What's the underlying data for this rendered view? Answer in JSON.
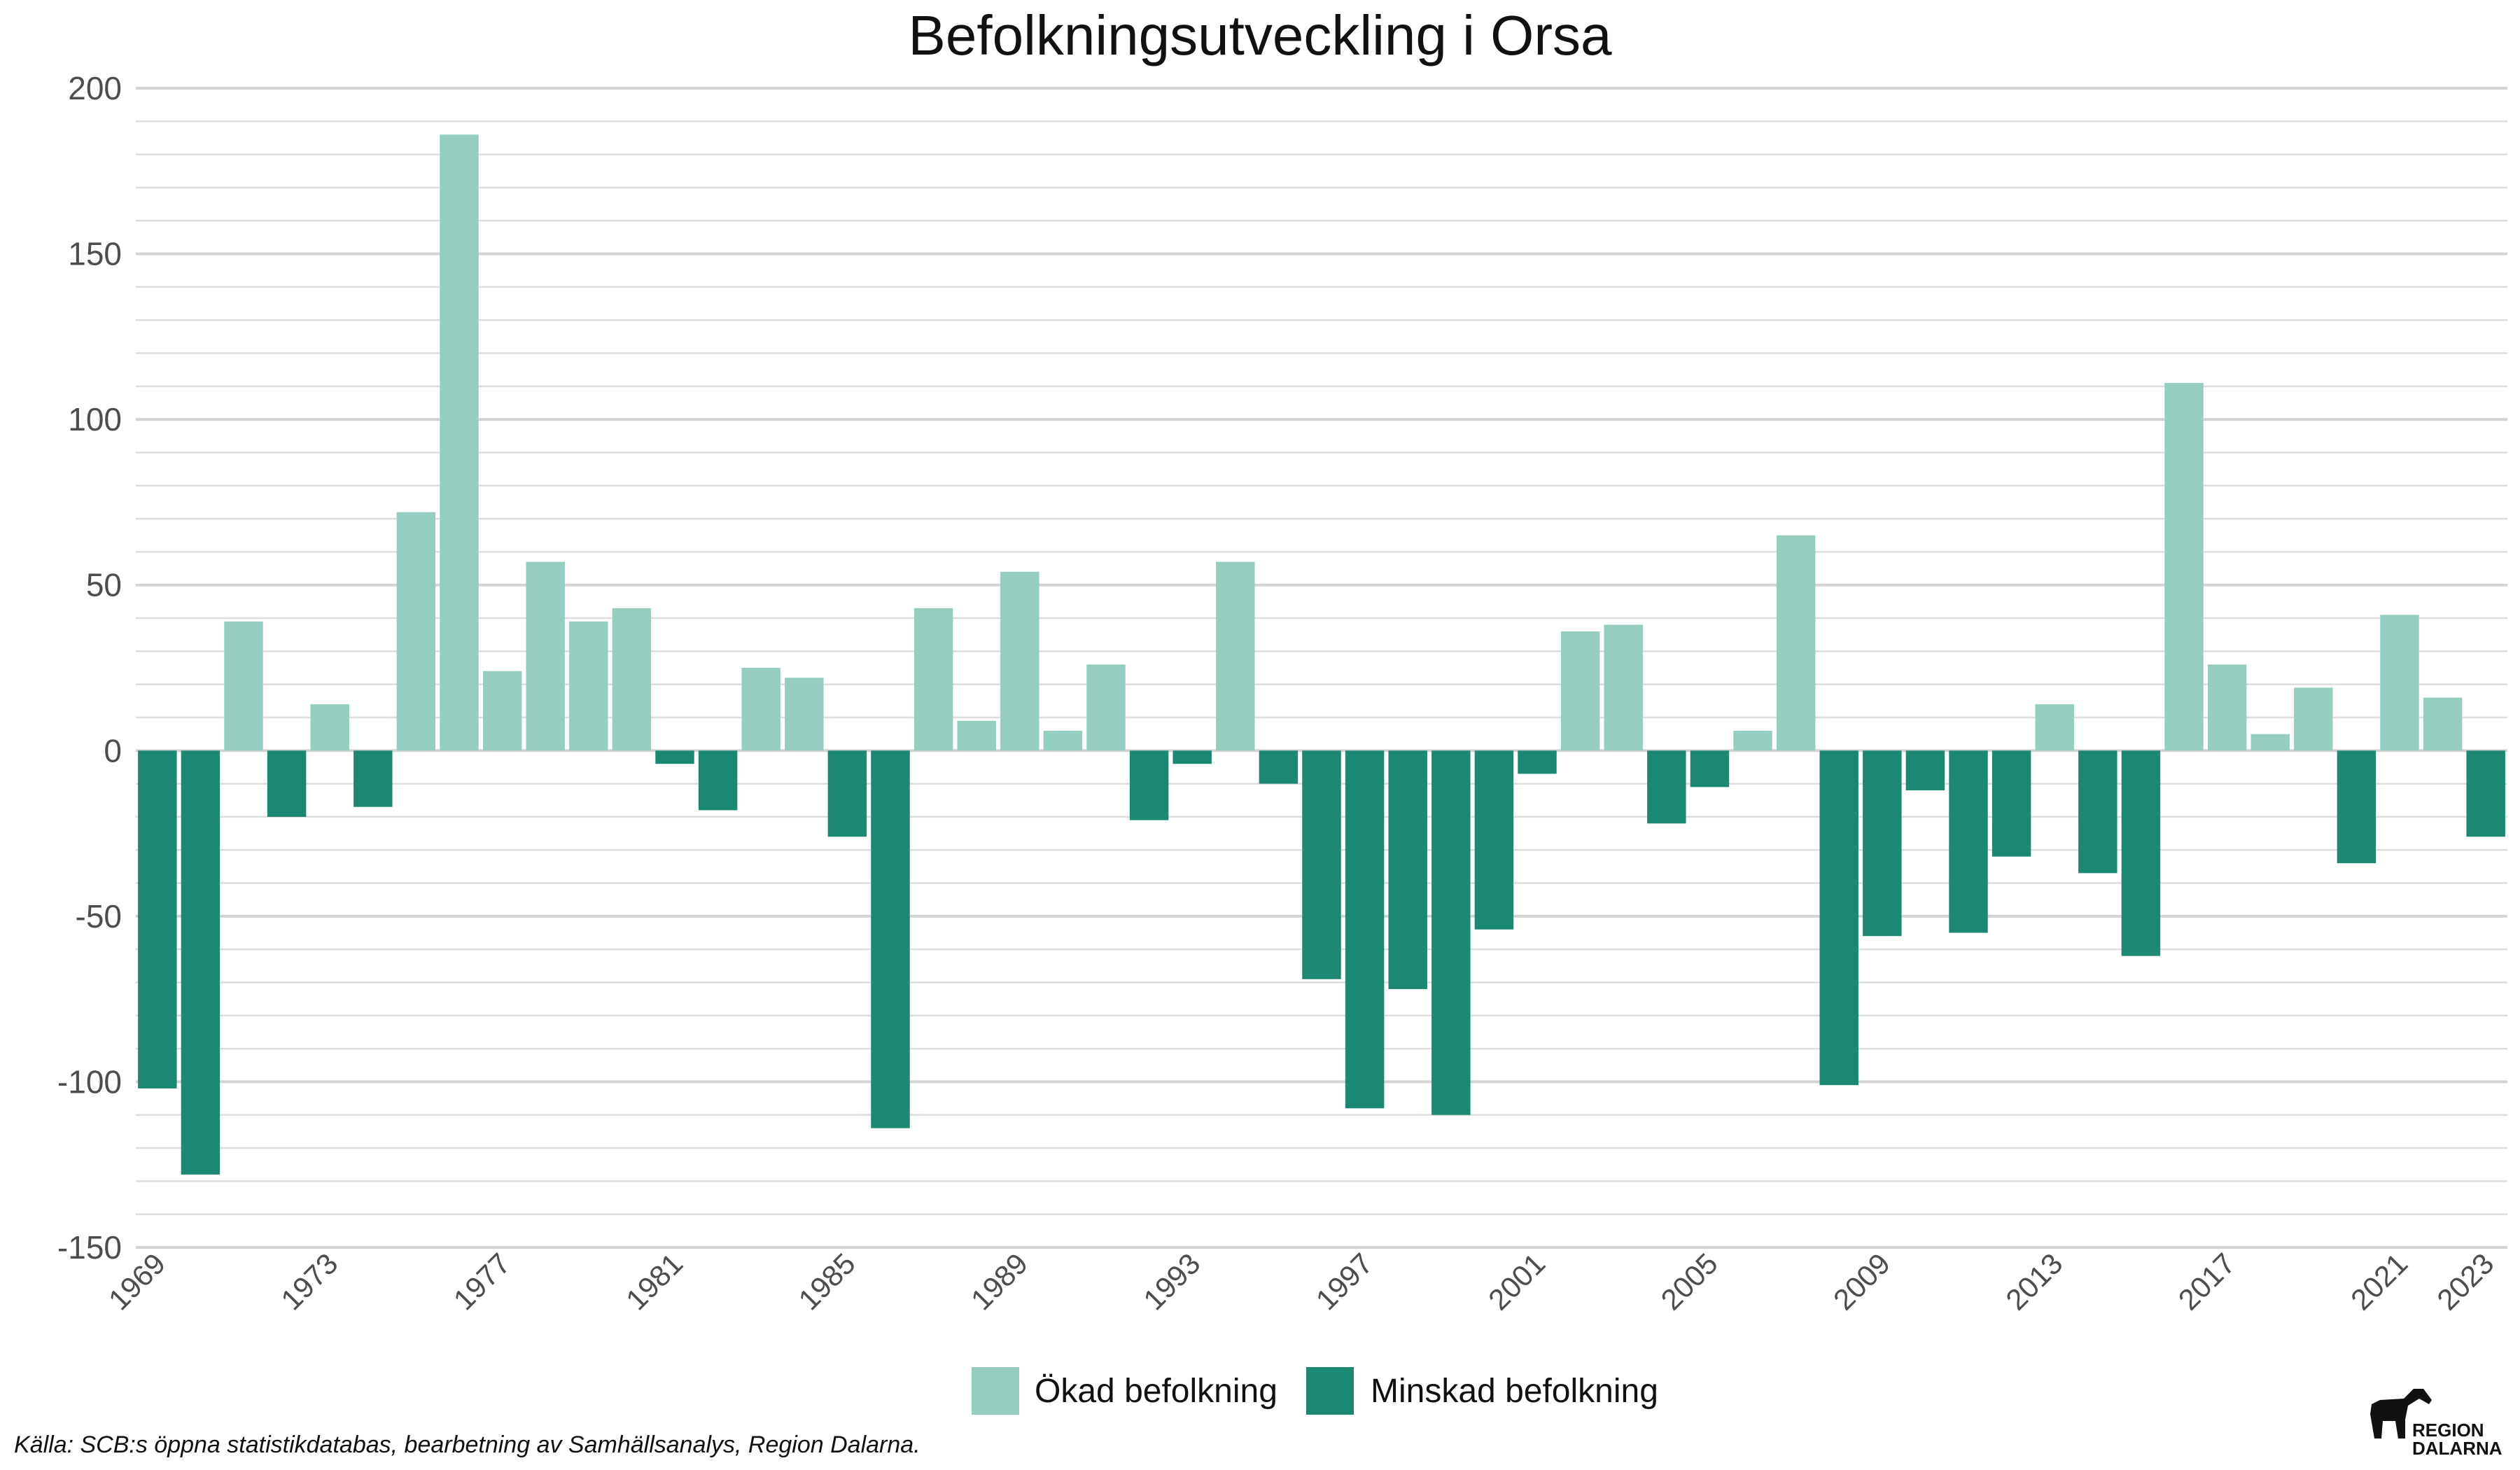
{
  "chart_data": {
    "type": "bar",
    "title": "Befolkningsutveckling i Orsa",
    "xlabel": "",
    "ylabel": "",
    "ylim": [
      -150,
      200
    ],
    "yticks": [
      200,
      150,
      100,
      50,
      0,
      -50,
      -100,
      -150
    ],
    "grid": true,
    "legend_position": "bottom",
    "x_tick_labels": [
      "1969",
      "1973",
      "1977",
      "1981",
      "1985",
      "1989",
      "1993",
      "1997",
      "2001",
      "2005",
      "2009",
      "2013",
      "2017",
      "2021",
      "2023"
    ],
    "categories": [
      1969,
      1970,
      1971,
      1972,
      1973,
      1974,
      1975,
      1976,
      1977,
      1978,
      1979,
      1980,
      1981,
      1982,
      1983,
      1984,
      1985,
      1986,
      1987,
      1988,
      1989,
      1990,
      1991,
      1992,
      1993,
      1994,
      1995,
      1996,
      1997,
      1998,
      1999,
      2000,
      2001,
      2002,
      2003,
      2004,
      2005,
      2006,
      2007,
      2008,
      2009,
      2010,
      2011,
      2012,
      2013,
      2014,
      2015,
      2016,
      2017,
      2018,
      2019,
      2020,
      2021,
      2022,
      2023
    ],
    "values": [
      -102,
      -128,
      39,
      -20,
      14,
      -17,
      72,
      186,
      24,
      57,
      39,
      43,
      -4,
      -18,
      25,
      22,
      -26,
      -114,
      43,
      9,
      54,
      6,
      26,
      -21,
      -4,
      57,
      -10,
      -69,
      -108,
      -72,
      -110,
      -54,
      -7,
      36,
      38,
      -22,
      -11,
      6,
      65,
      -101,
      -56,
      -12,
      -55,
      -32,
      14,
      -37,
      -62,
      111,
      26,
      5,
      19,
      -34,
      41,
      16,
      -26
    ],
    "legend": [
      {
        "name": "Ökad befolkning",
        "color": "#95cec0"
      },
      {
        "name": "Minskad befolkning",
        "color": "#1a8872"
      }
    ]
  },
  "colors": {
    "positive": "#95cec0",
    "negative": "#1a8872",
    "grid_major": "#d3d3d3",
    "grid_minor": "#dddddd"
  },
  "footer": {
    "source": "Källa: SCB:s öppna statistikdatabas, bearbetning av Samhällsanalys, Region Dalarna.",
    "logo_line1": "REGION",
    "logo_line2": "DALARNA"
  }
}
